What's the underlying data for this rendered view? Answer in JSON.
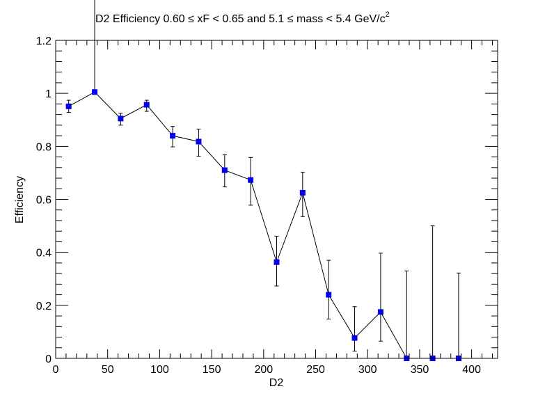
{
  "chart_data": {
    "type": "scatter",
    "title_main": "D2 Efficiency 0.60  ≤ xF < 0.65 and 5.1  ≤ mass < 5.4 GeV/c",
    "title_sup": "2",
    "xlabel": "D2",
    "ylabel": "Efficiency",
    "xlim": [
      0,
      425
    ],
    "ylim": [
      0,
      1.2
    ],
    "xticks": [
      "0",
      "50",
      "100",
      "150",
      "200",
      "250",
      "300",
      "350",
      "400"
    ],
    "yticks": [
      "0",
      "0.2",
      "0.4",
      "0.6",
      "0.8",
      "1",
      "1.2"
    ],
    "grid": false,
    "series": [
      {
        "marker": "square",
        "color": "#0000ee",
        "line_color": "#000000",
        "points": [
          {
            "x": 12.5,
            "y": 0.951,
            "err_low": 0.023,
            "err_high": 0.023
          },
          {
            "x": 37.5,
            "y": 1.005,
            "err_low": 0.0,
            "err_high": 0.36
          },
          {
            "x": 62.5,
            "y": 0.905,
            "err_low": 0.025,
            "err_high": 0.02
          },
          {
            "x": 87.5,
            "y": 0.957,
            "err_low": 0.025,
            "err_high": 0.017
          },
          {
            "x": 112.5,
            "y": 0.84,
            "err_low": 0.042,
            "err_high": 0.035
          },
          {
            "x": 137.5,
            "y": 0.818,
            "err_low": 0.055,
            "err_high": 0.047
          },
          {
            "x": 162.5,
            "y": 0.71,
            "err_low": 0.063,
            "err_high": 0.058
          },
          {
            "x": 187.5,
            "y": 0.673,
            "err_low": 0.095,
            "err_high": 0.085
          },
          {
            "x": 212.5,
            "y": 0.363,
            "err_low": 0.09,
            "err_high": 0.098
          },
          {
            "x": 237.5,
            "y": 0.625,
            "err_low": 0.09,
            "err_high": 0.077
          },
          {
            "x": 262.5,
            "y": 0.24,
            "err_low": 0.092,
            "err_high": 0.13
          },
          {
            "x": 287.5,
            "y": 0.077,
            "err_low": 0.05,
            "err_high": 0.118
          },
          {
            "x": 312.5,
            "y": 0.175,
            "err_low": 0.11,
            "err_high": 0.222
          },
          {
            "x": 337.5,
            "y": 0.0,
            "err_low": 0.0,
            "err_high": 0.33
          },
          {
            "x": 362.5,
            "y": 0.0,
            "err_low": 0.0,
            "err_high": 0.5
          },
          {
            "x": 387.5,
            "y": 0.0,
            "err_low": 0.0,
            "err_high": 0.322
          }
        ]
      }
    ]
  }
}
